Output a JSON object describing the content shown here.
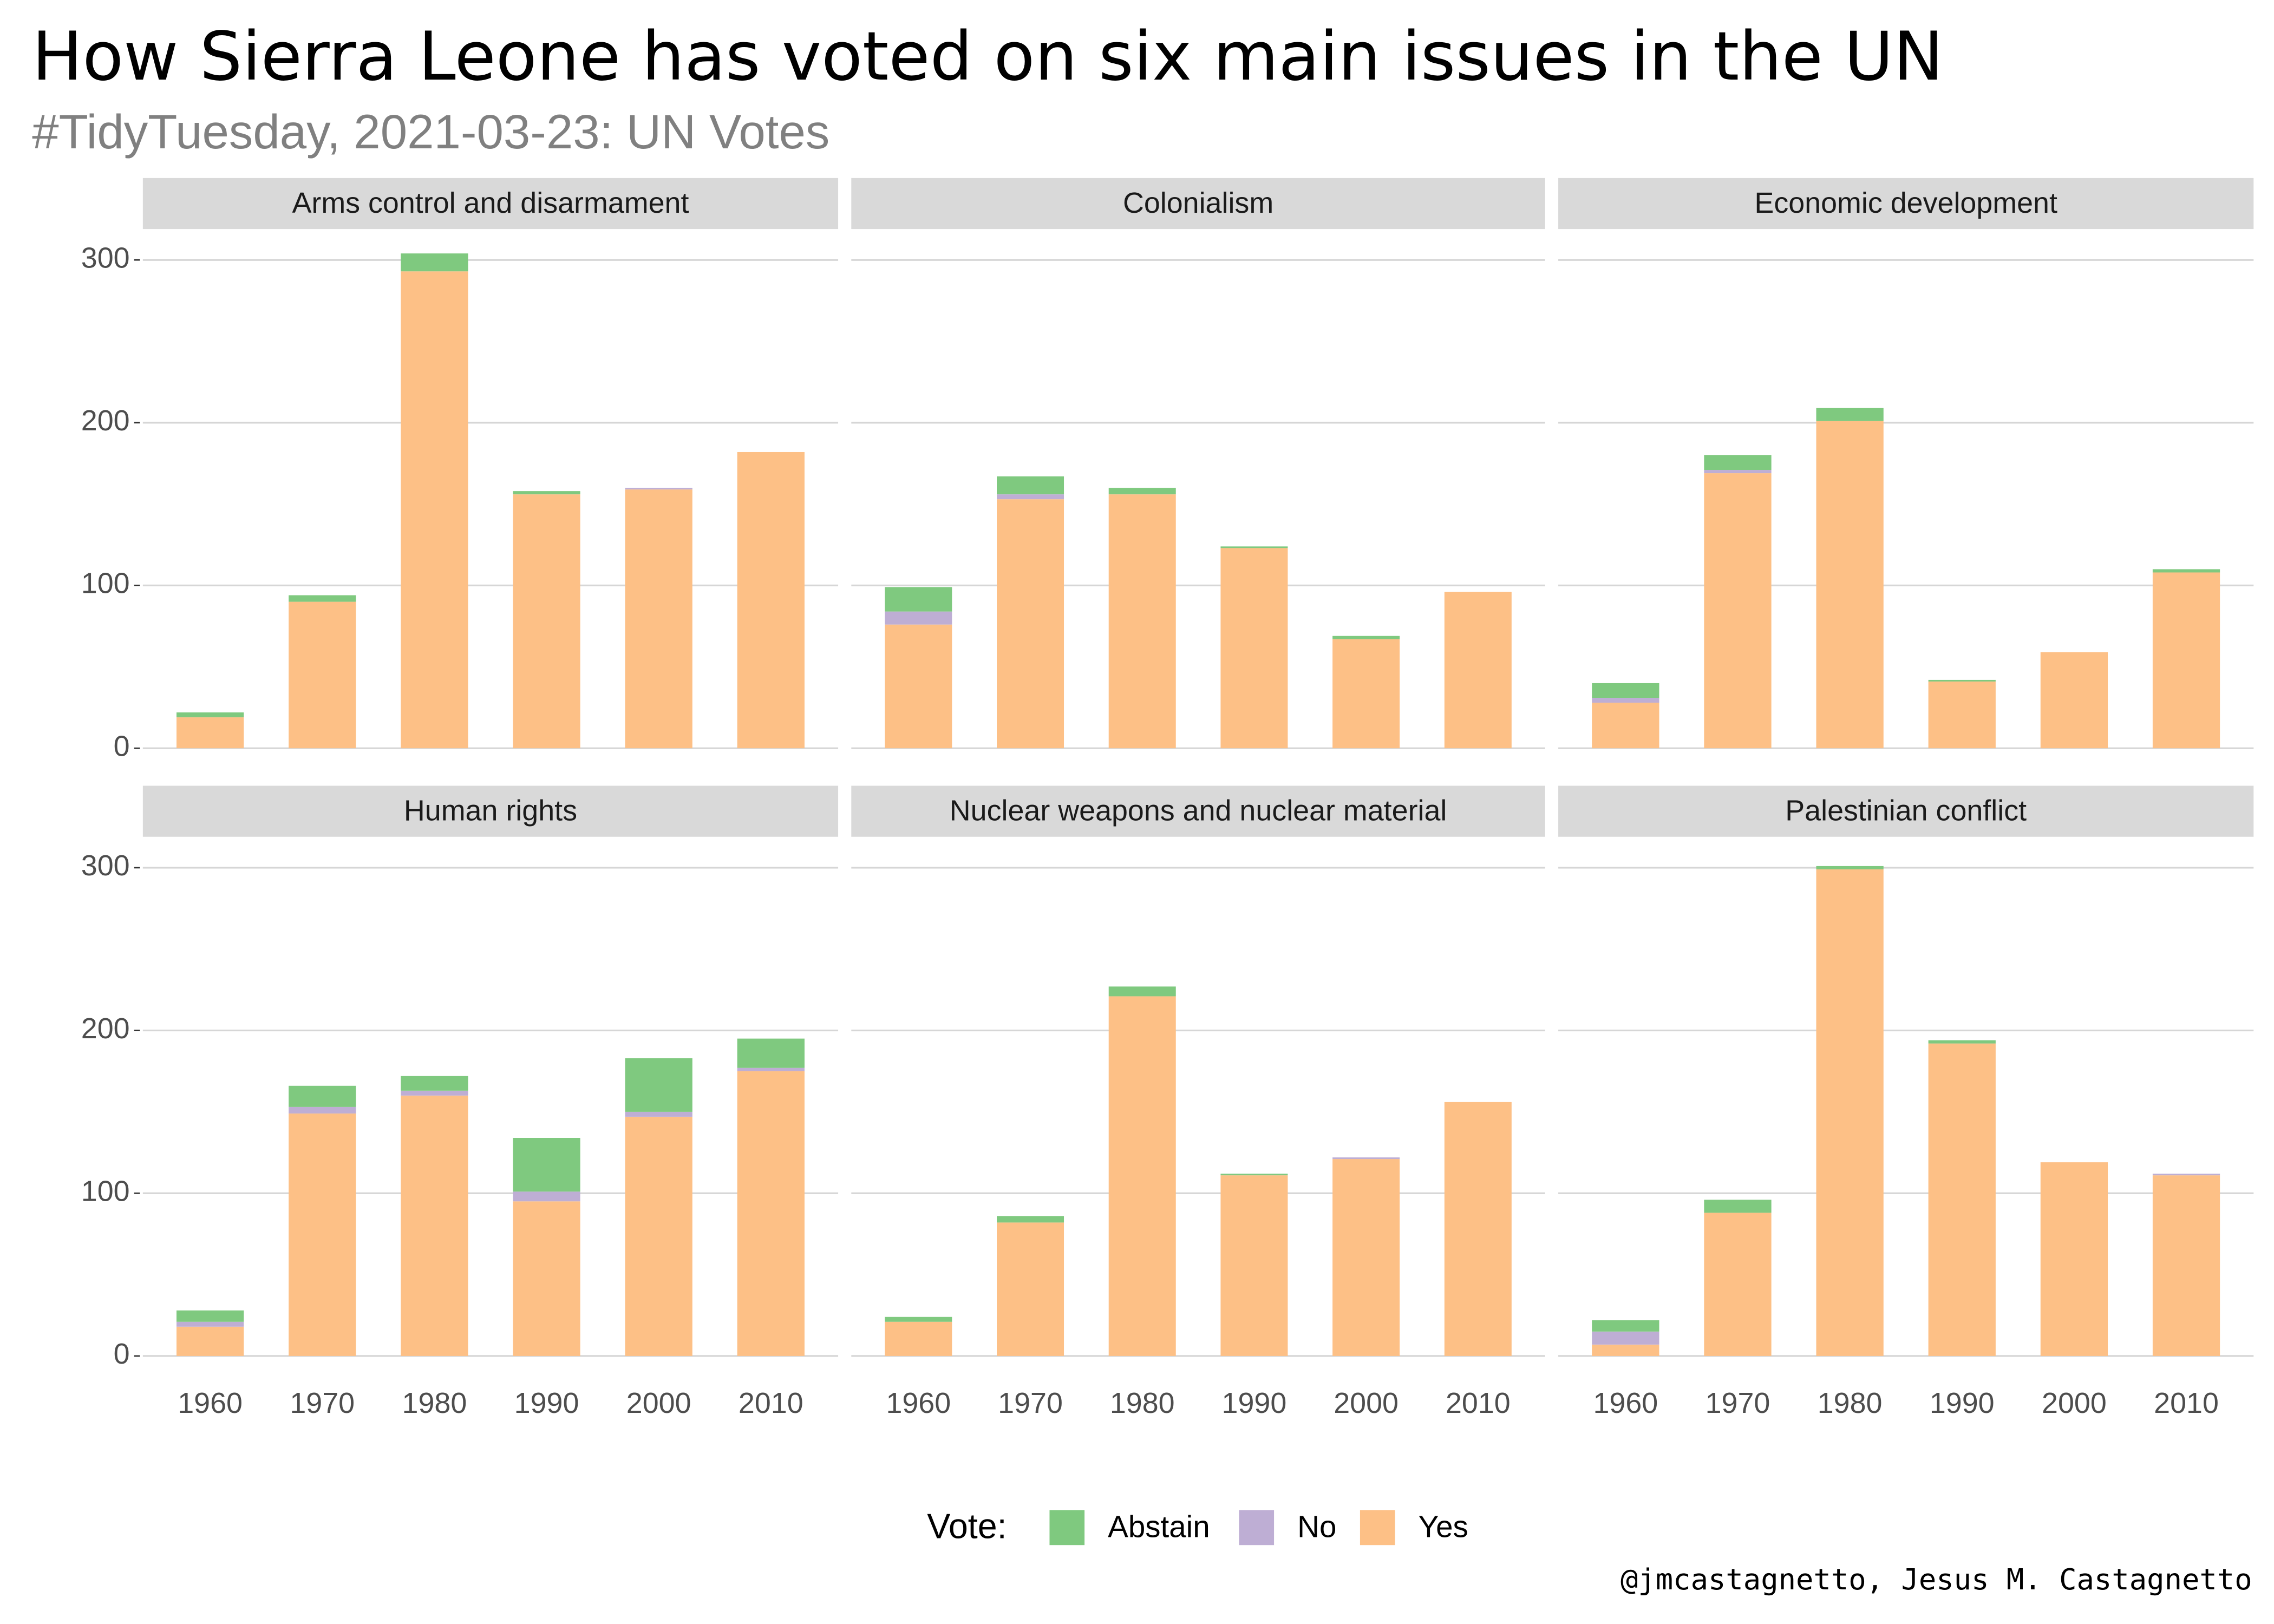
{
  "title": "How Sierra Leone has voted on six main issues in the UN",
  "subtitle": "#TidyTuesday, 2021-03-23: UN Votes",
  "legend_title": "Vote:",
  "caption": "@jmcastagnetto, Jesus M. Castagnetto",
  "chart_data": [
    {
      "type": "bar",
      "stacked": true,
      "title": "Arms control and disarmament",
      "categories": [
        "1960",
        "1970",
        "1980",
        "1990",
        "2000",
        "2010"
      ],
      "series": [
        {
          "name": "Abstain",
          "color": "#7fc97f",
          "values": [
            3,
            4,
            11,
            2,
            0,
            0
          ]
        },
        {
          "name": "No",
          "color": "#beaed4",
          "values": [
            0,
            0,
            0,
            0,
            1,
            0
          ]
        },
        {
          "name": "Yes",
          "color": "#fdc086",
          "values": [
            19,
            90,
            293,
            156,
            159,
            182
          ]
        }
      ],
      "ylim": [
        -15,
        319
      ],
      "yticks": [
        0,
        100,
        200,
        300
      ],
      "grid": true
    },
    {
      "type": "bar",
      "stacked": true,
      "title": "Colonialism",
      "categories": [
        "1960",
        "1970",
        "1980",
        "1990",
        "2000",
        "2010"
      ],
      "series": [
        {
          "name": "Abstain",
          "color": "#7fc97f",
          "values": [
            15,
            11,
            4,
            1,
            2,
            0
          ]
        },
        {
          "name": "No",
          "color": "#beaed4",
          "values": [
            8,
            3,
            0,
            0,
            0,
            0
          ]
        },
        {
          "name": "Yes",
          "color": "#fdc086",
          "values": [
            76,
            153,
            156,
            123,
            67,
            96
          ]
        }
      ],
      "ylim": [
        -15,
        319
      ],
      "yticks": [
        0,
        100,
        200,
        300
      ],
      "grid": true
    },
    {
      "type": "bar",
      "stacked": true,
      "title": "Economic development",
      "categories": [
        "1960",
        "1970",
        "1980",
        "1990",
        "2000",
        "2010"
      ],
      "series": [
        {
          "name": "Abstain",
          "color": "#7fc97f",
          "values": [
            9,
            9,
            8,
            1,
            0,
            2
          ]
        },
        {
          "name": "No",
          "color": "#beaed4",
          "values": [
            3,
            2,
            0,
            0,
            0,
            0
          ]
        },
        {
          "name": "Yes",
          "color": "#fdc086",
          "values": [
            28,
            169,
            201,
            41,
            59,
            108
          ]
        }
      ],
      "ylim": [
        -15,
        319
      ],
      "yticks": [
        0,
        100,
        200,
        300
      ],
      "grid": true
    },
    {
      "type": "bar",
      "stacked": true,
      "title": "Human rights",
      "categories": [
        "1960",
        "1970",
        "1980",
        "1990",
        "2000",
        "2010"
      ],
      "series": [
        {
          "name": "Abstain",
          "color": "#7fc97f",
          "values": [
            7,
            13,
            9,
            33,
            33,
            18
          ]
        },
        {
          "name": "No",
          "color": "#beaed4",
          "values": [
            3,
            4,
            3,
            6,
            3,
            2
          ]
        },
        {
          "name": "Yes",
          "color": "#fdc086",
          "values": [
            18,
            149,
            160,
            95,
            147,
            175
          ]
        }
      ],
      "ylim": [
        -15,
        319
      ],
      "yticks": [
        0,
        100,
        200,
        300
      ],
      "grid": true
    },
    {
      "type": "bar",
      "stacked": true,
      "title": "Nuclear weapons and nuclear material",
      "categories": [
        "1960",
        "1970",
        "1980",
        "1990",
        "2000",
        "2010"
      ],
      "series": [
        {
          "name": "Abstain",
          "color": "#7fc97f",
          "values": [
            3,
            4,
            6,
            1,
            0,
            0
          ]
        },
        {
          "name": "No",
          "color": "#beaed4",
          "values": [
            0,
            0,
            0,
            0,
            1,
            0
          ]
        },
        {
          "name": "Yes",
          "color": "#fdc086",
          "values": [
            21,
            82,
            221,
            111,
            121,
            156
          ]
        }
      ],
      "ylim": [
        -15,
        319
      ],
      "yticks": [
        0,
        100,
        200,
        300
      ],
      "grid": true
    },
    {
      "type": "bar",
      "stacked": true,
      "title": "Palestinian conflict",
      "categories": [
        "1960",
        "1970",
        "1980",
        "1990",
        "2000",
        "2010"
      ],
      "series": [
        {
          "name": "Abstain",
          "color": "#7fc97f",
          "values": [
            7,
            8,
            2,
            2,
            0,
            0
          ]
        },
        {
          "name": "No",
          "color": "#beaed4",
          "values": [
            8,
            0,
            0,
            0,
            0,
            1
          ]
        },
        {
          "name": "Yes",
          "color": "#fdc086",
          "values": [
            7,
            88,
            299,
            192,
            119,
            111
          ]
        }
      ],
      "ylim": [
        -15,
        319
      ],
      "yticks": [
        0,
        100,
        200,
        300
      ],
      "grid": true
    }
  ]
}
